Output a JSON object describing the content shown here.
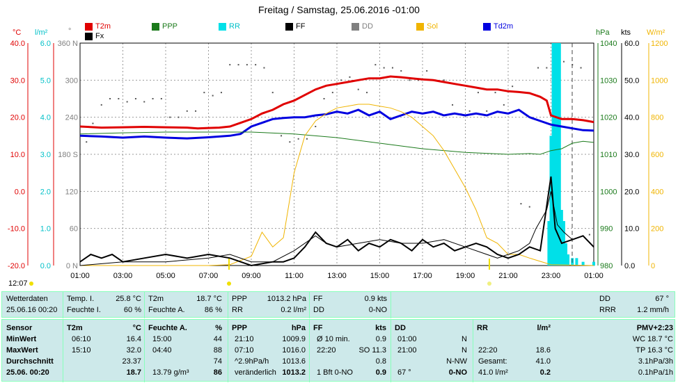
{
  "title": "Freitag / Samstag, 25.06.2016  -01:00",
  "legend": [
    {
      "name": "T2m",
      "color": "#e00000"
    },
    {
      "name": "PPP",
      "color": "#1b7a1b"
    },
    {
      "name": "RR",
      "color": "#00e0e8"
    },
    {
      "name": "FF",
      "color": "#000000"
    },
    {
      "name": "DD",
      "color": "#808080"
    },
    {
      "name": "Sol",
      "color": "#f0b400"
    },
    {
      "name": "Td2m",
      "color": "#0000e0"
    },
    {
      "name": "Fx",
      "color": "#000000"
    }
  ],
  "axis_units": {
    "temp": "°C",
    "rr": "l/m²",
    "dd": "°",
    "ppp": "hPa",
    "ff": "kts",
    "sol": "W/m²"
  },
  "sunrise_time": "12:07",
  "chart_data": {
    "type": "line",
    "x_ticks": [
      "01:00",
      "03:00",
      "05:00",
      "07:00",
      "09:00",
      "11:00",
      "13:00",
      "15:00",
      "17:00",
      "19:00",
      "21:00",
      "23:00",
      "01:00"
    ],
    "x_range_hours": [
      0,
      24
    ],
    "axes": {
      "temp": {
        "unit": "°C",
        "range": [
          -20,
          40
        ],
        "ticks": [
          "40.0",
          "30.0",
          "20.0",
          "10.0",
          "0.0",
          "-10.0",
          "-20.0"
        ]
      },
      "rr": {
        "unit": "l/m²",
        "range": [
          0,
          6
        ],
        "ticks": [
          "6.0",
          "5.0",
          "4.0",
          "3.0",
          "2.0",
          "1.0",
          "0.0"
        ]
      },
      "dd": {
        "unit": "°",
        "range": [
          0,
          360
        ],
        "ticks": [
          "360 N",
          "300",
          "240",
          "180 S",
          "120",
          "60",
          "0 N"
        ]
      },
      "ppp": {
        "unit": "hPa",
        "range": [
          980,
          1040
        ],
        "ticks": [
          "1040",
          "1030",
          "1020",
          "1010",
          "1000",
          "990",
          "980"
        ]
      },
      "ff": {
        "unit": "kts",
        "range": [
          0,
          60
        ],
        "ticks": [
          "60.0",
          "50.0",
          "40.0",
          "30.0",
          "20.0",
          "10.0",
          "0.0"
        ]
      },
      "sol": {
        "unit": "W/m²",
        "range": [
          0,
          1200
        ],
        "ticks": [
          "1200",
          "1000",
          "800",
          "600",
          "400",
          "200",
          "0"
        ]
      }
    },
    "series": [
      {
        "name": "T2m",
        "axis": "temp",
        "x": [
          0,
          1,
          2,
          3,
          4,
          5,
          5.5,
          6,
          6.5,
          7,
          7.5,
          8,
          8.5,
          9,
          9.5,
          10,
          10.5,
          11,
          11.5,
          12,
          12.5,
          13,
          13.5,
          14,
          14.5,
          15,
          15.5,
          16,
          16.5,
          17,
          17.5,
          18,
          18.5,
          19,
          19.5,
          20,
          20.5,
          21,
          21.5,
          21.8,
          22,
          22.5,
          23,
          23.5,
          24
        ],
        "y": [
          17.5,
          17.2,
          17.3,
          17.4,
          17.3,
          17.2,
          17.0,
          17.1,
          17.2,
          17.5,
          18.5,
          19.5,
          21.0,
          22.0,
          23.5,
          24.5,
          26.0,
          27.5,
          28.5,
          29.0,
          29.5,
          30.0,
          30.5,
          30.5,
          31.0,
          30.8,
          30.5,
          30.2,
          30.0,
          29.5,
          29.0,
          28.5,
          28.0,
          27.5,
          27.5,
          27.0,
          26.8,
          26.5,
          25.5,
          24.5,
          20.5,
          19.5,
          19.5,
          19.2,
          18.7
        ]
      },
      {
        "name": "Td2m",
        "axis": "temp",
        "x": [
          0,
          1,
          2,
          3,
          4,
          5,
          6,
          7,
          7.5,
          8,
          8.5,
          9,
          9.5,
          10,
          10.5,
          11,
          11.5,
          12,
          12.5,
          13,
          13.5,
          14,
          14.5,
          15,
          15.5,
          16,
          16.5,
          17,
          17.5,
          18,
          18.5,
          19,
          19.5,
          20,
          20.5,
          21,
          21.5,
          22,
          22.5,
          23,
          23.5,
          24
        ],
        "y": [
          15.0,
          14.8,
          14.5,
          14.8,
          14.5,
          14.3,
          14.6,
          15.0,
          15.5,
          17.5,
          18.5,
          19.5,
          19.8,
          20.0,
          20.0,
          20.5,
          20.8,
          21.5,
          21.0,
          22.0,
          20.5,
          21.5,
          19.5,
          20.5,
          21.5,
          21.0,
          21.5,
          20.5,
          21.0,
          20.5,
          21.0,
          20.5,
          21.5,
          21.0,
          22.0,
          20.0,
          19.0,
          18.0,
          17.5,
          17.0,
          16.5,
          16.4
        ]
      },
      {
        "name": "PPP",
        "axis": "ppp",
        "x": [
          0,
          2,
          4,
          6,
          8,
          10,
          12,
          14,
          16,
          18,
          20,
          21,
          21.5,
          22,
          22.5,
          23,
          23.5,
          24
        ],
        "y": [
          1015.5,
          1015.8,
          1016.0,
          1016.0,
          1016.0,
          1015.5,
          1014.5,
          1013.0,
          1011.5,
          1010.5,
          1010.0,
          1010.2,
          1010.0,
          1011.0,
          1011.5,
          1013.0,
          1013.5,
          1013.2
        ]
      },
      {
        "name": "Sol",
        "axis": "sol",
        "x": [
          0,
          6,
          7,
          8,
          8.5,
          9,
          9.5,
          10,
          10.5,
          11,
          11.5,
          12,
          12.5,
          13,
          13.5,
          14,
          14.5,
          15,
          15.5,
          16,
          16.5,
          17,
          17.5,
          18,
          18.5,
          19,
          19.5,
          20,
          20.5,
          21,
          22,
          24
        ],
        "y": [
          0,
          0,
          5,
          50,
          180,
          100,
          150,
          500,
          700,
          780,
          820,
          850,
          860,
          870,
          870,
          860,
          850,
          830,
          800,
          750,
          700,
          620,
          520,
          420,
          300,
          150,
          120,
          60,
          60,
          40,
          5,
          0
        ]
      },
      {
        "name": "FF",
        "axis": "ff",
        "x": [
          0,
          0.5,
          1,
          1.5,
          2,
          3,
          4,
          5,
          6,
          7,
          8,
          9,
          9.5,
          10,
          10.5,
          11,
          11.5,
          12,
          12.5,
          13,
          13.5,
          14,
          14.5,
          15,
          15.5,
          16,
          16.5,
          17,
          17.5,
          18,
          18.5,
          19,
          19.5,
          20,
          20.5,
          21,
          21.5,
          22,
          22.2,
          22.5,
          23,
          23.5,
          24
        ],
        "y": [
          1,
          3,
          2,
          3,
          1,
          2,
          3,
          2,
          3,
          2,
          0,
          1,
          1,
          2,
          5,
          9,
          6,
          5,
          7,
          4,
          6,
          5,
          7,
          6,
          4,
          7,
          5,
          6,
          4,
          5,
          6,
          5,
          3,
          2,
          3,
          5,
          4,
          24,
          10,
          6,
          7,
          8,
          5
        ]
      },
      {
        "name": "Fx",
        "axis": "ff",
        "x": [
          0,
          2,
          4,
          6,
          7,
          8,
          9,
          10,
          11,
          11.5,
          12,
          13,
          14,
          15,
          16,
          17,
          18,
          19,
          19.5,
          20,
          20.5,
          21,
          21.3,
          21.8,
          22,
          22.3,
          22.6,
          23,
          23.5,
          24
        ],
        "y": [
          0,
          1,
          1,
          2,
          3,
          1,
          1,
          4,
          8,
          6,
          5,
          6,
          7,
          6,
          6,
          7,
          5,
          3,
          2,
          3,
          4,
          6,
          10,
          15,
          20,
          11,
          9,
          7,
          8,
          5
        ]
      },
      {
        "name": "RR",
        "axis": "rr",
        "type": "bar",
        "x": [
          21.9,
          22.0,
          22.1,
          22.2,
          22.3,
          22.4,
          22.5,
          22.6,
          22.7,
          22.8,
          23.0,
          23.2,
          23.5,
          24
        ],
        "y": [
          1.2,
          3.5,
          6.0,
          6.0,
          6.0,
          6.0,
          1.5,
          1.2,
          0.6,
          0.3,
          0.2,
          0.2,
          0.1,
          0.1
        ]
      }
    ],
    "dd_points": {
      "x": [
        0.3,
        0.6,
        1,
        1.4,
        1.8,
        2.2,
        2.6,
        3,
        3.4,
        3.8,
        4.2,
        4.6,
        5,
        5.4,
        5.8,
        6.2,
        6.6,
        7,
        7.4,
        7.8,
        8.2,
        8.6,
        9,
        9.4,
        9.8,
        10.2,
        10.6,
        11,
        11.4,
        11.8,
        12.2,
        12.6,
        13,
        13.4,
        13.8,
        14.2,
        14.6,
        15,
        15.4,
        15.8,
        16.2,
        16.6,
        17,
        17.4,
        17.8,
        18.2,
        18.6,
        19,
        19.4,
        19.8,
        20.2,
        20.6,
        21,
        21.4,
        21.8,
        22.2,
        22.6,
        23,
        23.4,
        23.8
      ],
      "y": [
        200,
        230,
        260,
        270,
        270,
        265,
        270,
        265,
        270,
        270,
        240,
        240,
        250,
        250,
        280,
        275,
        280,
        325,
        325,
        325,
        325,
        320,
        280,
        210,
        200,
        205,
        205,
        225,
        270,
        280,
        300,
        305,
        285,
        280,
        325,
        320,
        320,
        315,
        300,
        300,
        315,
        300,
        300,
        260,
        245,
        250,
        280,
        250,
        280,
        260,
        290,
        100,
        95,
        320,
        320,
        340,
        330,
        325,
        320,
        50
      ]
    },
    "dd_current": "67 °"
  },
  "panels": {
    "row1": {
      "wetterdaten": "Wetterdaten",
      "datetime": "25.06.16 00:20",
      "temp_i_label": "Temp. I.",
      "temp_i_val": "25.8 °C",
      "feuchte_i_label": "Feuchte I.",
      "feuchte_i_val": "60 %",
      "t2m_label": "T2m",
      "t2m_val": "18.7 °C",
      "feuchte_a_label": "Feuchte A.",
      "feuchte_a_val": "86 %",
      "ppp_label": "PPP",
      "ppp_val": "1013.2 hPa",
      "rr_label": "RR",
      "rr_val": "0.2 l/m²",
      "ff_label": "FF",
      "ff_val": "0.9 kts",
      "dd_label": "DD",
      "dd_val": "0-NO",
      "dd2_label": "DD",
      "dd2_val": "67 °",
      "rrr_label": "RRR",
      "rrr_val": "1.2 mm/h"
    },
    "stats": {
      "col_sensor": [
        "Sensor",
        "MinWert",
        "MaxWert",
        "Durchschnitt",
        "25.06. 00:20"
      ],
      "t2m_head": "T2m",
      "t2m_unit": "°C",
      "t2m_rows": [
        [
          "06:10",
          "16.4"
        ],
        [
          "15:10",
          "32.0"
        ],
        [
          "",
          "23.37"
        ],
        [
          "",
          "18.7"
        ]
      ],
      "fa_head": "Feuchte A.",
      "fa_unit": "%",
      "fa_rows": [
        [
          "15:00",
          "44"
        ],
        [
          "04:40",
          "88"
        ],
        [
          "",
          "74"
        ],
        [
          "13.79 g/m³",
          "86"
        ]
      ],
      "ppp_head": "PPP",
      "ppp_unit": "hPa",
      "ppp_rows": [
        [
          "21:10",
          "1009.9"
        ],
        [
          "07:10",
          "1016.0"
        ],
        [
          "^2.9hPa/h",
          "1013.6"
        ],
        [
          "veränderlich",
          "1013.2"
        ]
      ],
      "ff_head": "FF",
      "ff_unit": "kts",
      "ff_rows": [
        [
          "Ø 10 min.",
          "0.9"
        ],
        [
          "22:20",
          "SO 11.3"
        ],
        [
          "",
          "0.8"
        ],
        [
          "1 Bft 0-NO",
          "0.9"
        ]
      ],
      "dd_head": "DD",
      "dd_rows": [
        [
          "01:00",
          "N"
        ],
        [
          "21:00",
          "N"
        ],
        [
          "",
          "N-NW"
        ],
        [
          "67 °",
          "0-NO"
        ]
      ],
      "rr_head": "RR",
      "rr_unit": "l/m²",
      "rr_rows": [
        [
          "",
          ""
        ],
        [
          "22:20",
          "18.6"
        ],
        [
          "Gesamt:",
          "41.0"
        ],
        [
          "41.0 l/m²",
          "0.2"
        ]
      ],
      "pmv_head": "PMV+2:23",
      "pmv_rows": [
        "WC 18.7 °C",
        "TP 16.3 °C",
        "3.1hPa/3h",
        "0.1hPa/1h"
      ]
    }
  }
}
